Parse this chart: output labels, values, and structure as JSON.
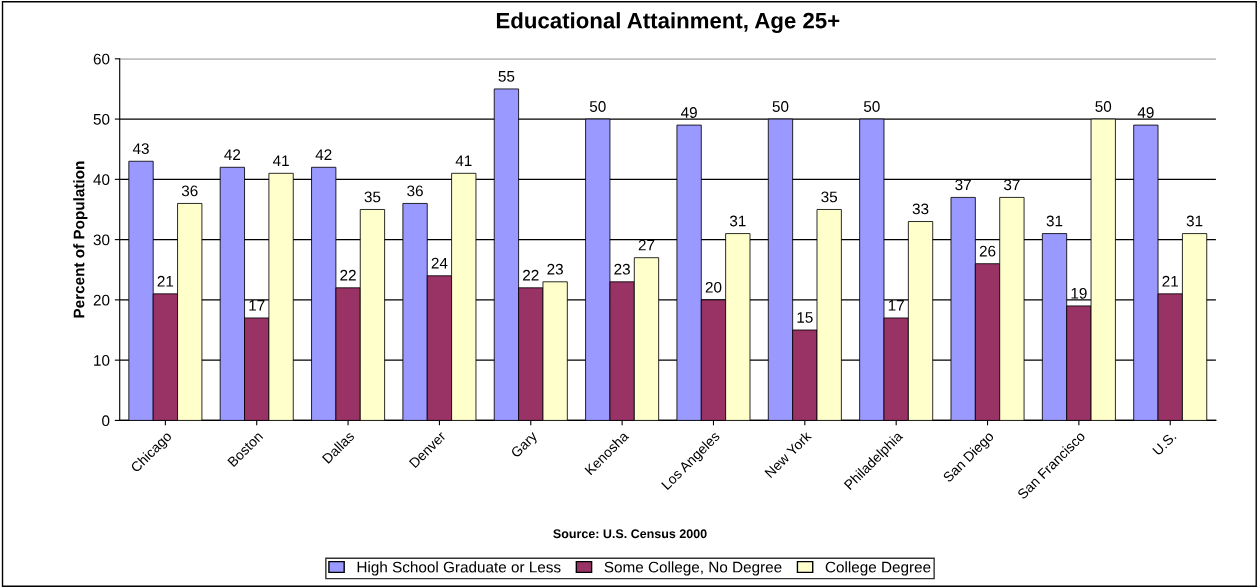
{
  "chart_data": {
    "type": "bar",
    "title": "Educational Attainment, Age 25+",
    "ylabel": "Percent of Population",
    "categories": [
      "Chicago",
      "Boston",
      "Dallas",
      "Denver",
      "Gary",
      "Kenosha",
      "Los Angeles",
      "New York",
      "Philadelphia",
      "San Diego",
      "San Francisco",
      "U.S."
    ],
    "series": [
      {
        "name": "High School Graduate or Less",
        "color": "#9999ff",
        "values": [
          43,
          42,
          42,
          36,
          55,
          50,
          49,
          50,
          50,
          37,
          31,
          49
        ]
      },
      {
        "name": "Some College, No Degree",
        "color": "#993366",
        "values": [
          21,
          17,
          22,
          24,
          22,
          23,
          20,
          15,
          17,
          26,
          19,
          21
        ]
      },
      {
        "name": "College Degree",
        "color": "#ffffcc",
        "values": [
          36,
          41,
          35,
          41,
          23,
          27,
          31,
          35,
          33,
          37,
          50,
          31
        ]
      }
    ],
    "ylim": [
      0,
      60
    ],
    "yticks": [
      0,
      10,
      20,
      30,
      40,
      50,
      60
    ],
    "grid": "y",
    "legend": "bottom",
    "data_labels": true,
    "annotations": [
      "Source: U.S. Census 2000"
    ]
  }
}
